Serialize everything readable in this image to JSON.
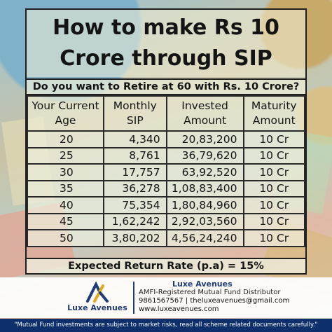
{
  "title_line1": "How to make Rs 10",
  "title_line2": "Crore through SIP",
  "subtitle": "Do you want to Retire at 60 with Rs. 10 Crore?",
  "table": {
    "headers": [
      {
        "line1": "Your Current",
        "line2": "Age"
      },
      {
        "line1": "Monthly",
        "line2": "SIP"
      },
      {
        "line1": "Invested",
        "line2": "Amount"
      },
      {
        "line1": "Maturity",
        "line2": "Amount"
      }
    ],
    "rows": [
      {
        "age": "20",
        "sip": "4,340",
        "invested": "20,83,200",
        "maturity": "10 Cr"
      },
      {
        "age": "25",
        "sip": "8,761",
        "invested": "36,79,620",
        "maturity": "10 Cr"
      },
      {
        "age": "30",
        "sip": "17,757",
        "invested": "63,92,520",
        "maturity": "10 Cr"
      },
      {
        "age": "35",
        "sip": "36,278",
        "invested": "1,08,83,400",
        "maturity": "10 Cr"
      },
      {
        "age": "40",
        "sip": "75,354",
        "invested": "1,80,84,960",
        "maturity": "10 Cr"
      },
      {
        "age": "45",
        "sip": "1,62,242",
        "invested": "2,92,03,560",
        "maturity": "10 Cr"
      },
      {
        "age": "50",
        "sip": "3,80,202",
        "invested": "4,56,24,240",
        "maturity": "10 Cr"
      }
    ]
  },
  "return_rate": "Expected Return Rate (p.a) = 15%",
  "brand": {
    "logo_text": "Luxe Avenues",
    "name": "Luxe Avenues",
    "tagline": "AMFI-Registered Mutual Fund Distributor",
    "contact": "9861567567 | theluxeavenues@gmail.com",
    "website": "www.luxeavenues.com"
  },
  "disclaimer": "\"Mutual Fund investments are subject to market risks, read all scheme related documents carefully.\"",
  "colors": {
    "brand_navy": "#0d2f6b"
  }
}
